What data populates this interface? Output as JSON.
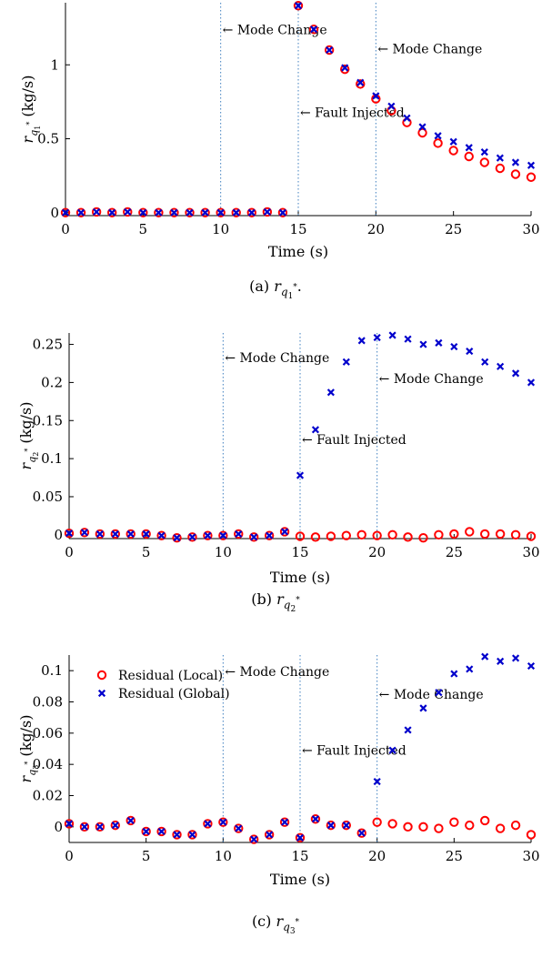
{
  "chart_data": [
    {
      "type": "scatter",
      "caption": "(a) r_{q_1^*}.",
      "xlabel": "Time (s)",
      "ylabel": "r_{q_1^*} (kg/s)",
      "xlim": [
        0,
        30
      ],
      "ylim": [
        -0.02,
        1.42
      ],
      "x_ticks": [
        0,
        5,
        10,
        15,
        20,
        25,
        30
      ],
      "y_ticks": [
        0,
        0.5,
        1
      ],
      "y_tick_labels": [
        "0",
        "0.5",
        "1"
      ],
      "grid": false,
      "vlines": [
        10,
        15,
        20
      ],
      "annotations": [
        {
          "text": "← Mode Change",
          "x": 10,
          "y": 1.24
        },
        {
          "text": "← Mode Change",
          "x": 20,
          "y": 1.11
        },
        {
          "text": "← Fault Injected",
          "x": 15,
          "y": 0.68
        }
      ],
      "series": [
        {
          "name": "Residual (Local)",
          "marker": "circle",
          "color": "#ff0000",
          "x": [
            0,
            1,
            2,
            3,
            4,
            5,
            6,
            7,
            8,
            9,
            10,
            11,
            12,
            13,
            14,
            15,
            16,
            17,
            18,
            19,
            20,
            21,
            22,
            23,
            24,
            25,
            26,
            27,
            28,
            29,
            30
          ],
          "y": [
            0,
            0,
            0.005,
            0,
            0.005,
            0,
            0,
            0,
            0,
            0,
            0,
            0,
            0,
            0.005,
            0,
            1.4,
            1.24,
            1.1,
            0.97,
            0.87,
            0.77,
            0.69,
            0.61,
            0.54,
            0.47,
            0.42,
            0.38,
            0.34,
            0.3,
            0.26,
            0.24
          ]
        },
        {
          "name": "Residual (Global)",
          "marker": "x",
          "color": "#0000cc",
          "x": [
            0,
            1,
            2,
            3,
            4,
            5,
            6,
            7,
            8,
            9,
            10,
            11,
            12,
            13,
            14,
            15,
            16,
            17,
            18,
            19,
            20,
            21,
            22,
            23,
            24,
            25,
            26,
            27,
            28,
            29,
            30
          ],
          "y": [
            0,
            0,
            0.005,
            0,
            0.005,
            0,
            0,
            0,
            0,
            0,
            0,
            0,
            0,
            0.005,
            0,
            1.4,
            1.24,
            1.1,
            0.98,
            0.88,
            0.79,
            0.72,
            0.64,
            0.58,
            0.52,
            0.48,
            0.44,
            0.41,
            0.37,
            0.34,
            0.32
          ]
        }
      ]
    },
    {
      "type": "scatter",
      "caption": "(b) r_{q_2^*}",
      "xlabel": "Time (s)",
      "ylabel": "r_{q_2^*} (kg/s)",
      "xlim": [
        0,
        30
      ],
      "ylim": [
        -0.005,
        0.265
      ],
      "x_ticks": [
        0,
        5,
        10,
        15,
        20,
        25,
        30
      ],
      "y_ticks": [
        0,
        0.05,
        0.1,
        0.15,
        0.2,
        0.25
      ],
      "y_tick_labels": [
        "0",
        "0.05",
        "0.1",
        "0.15",
        "0.2",
        "0.25"
      ],
      "grid": false,
      "vlines": [
        10,
        15,
        20
      ],
      "annotations": [
        {
          "text": "← Mode Change",
          "x": 10,
          "y": 0.233
        },
        {
          "text": "← Mode Change",
          "x": 20,
          "y": 0.205
        },
        {
          "text": "← Fault Injected",
          "x": 15,
          "y": 0.125
        }
      ],
      "series": [
        {
          "name": "Residual (Local)",
          "marker": "circle",
          "color": "#ff0000",
          "x": [
            0,
            1,
            2,
            3,
            4,
            5,
            6,
            7,
            8,
            9,
            10,
            11,
            12,
            13,
            14,
            15,
            16,
            17,
            18,
            19,
            20,
            21,
            22,
            23,
            24,
            25,
            26,
            27,
            28,
            29,
            30
          ],
          "y": [
            0.002,
            0.003,
            0.001,
            0.001,
            0.001,
            0.001,
            -0.001,
            -0.004,
            -0.003,
            -0.001,
            -0.001,
            0.001,
            -0.003,
            -0.001,
            0.004,
            -0.002,
            -0.003,
            -0.002,
            -0.001,
            0,
            -0.001,
            0,
            -0.003,
            -0.004,
            0,
            0.001,
            0.004,
            0.001,
            0.001,
            0,
            -0.002
          ]
        },
        {
          "name": "Residual (Global)",
          "marker": "x",
          "color": "#0000cc",
          "x": [
            0,
            1,
            2,
            3,
            4,
            5,
            6,
            7,
            8,
            9,
            10,
            11,
            12,
            13,
            14,
            15,
            16,
            17,
            18,
            19,
            20,
            21,
            22,
            23,
            24,
            25,
            26,
            27,
            28,
            29,
            30
          ],
          "y": [
            0.002,
            0.003,
            0.001,
            0.001,
            0.001,
            0.001,
            -0.001,
            -0.004,
            -0.003,
            -0.001,
            -0.001,
            0.001,
            -0.003,
            -0.001,
            0.004,
            0.078,
            0.138,
            0.187,
            0.227,
            0.255,
            0.259,
            0.262,
            0.257,
            0.25,
            0.252,
            0.247,
            0.241,
            0.227,
            0.221,
            0.212,
            0.2
          ]
        }
      ]
    },
    {
      "type": "scatter",
      "caption": "(c) r_{q_3^*}",
      "xlabel": "Time (s)",
      "ylabel": "r_{q_3^*} (kg/s)",
      "xlim": [
        0,
        30
      ],
      "ylim": [
        -0.01,
        0.11
      ],
      "x_ticks": [
        0,
        5,
        10,
        15,
        20,
        25,
        30
      ],
      "y_ticks": [
        0,
        0.02,
        0.04,
        0.06,
        0.08,
        0.1
      ],
      "y_tick_labels": [
        "0",
        "0.02",
        "0.04",
        "0.06",
        "0.08",
        "0.1"
      ],
      "grid": false,
      "vlines": [
        10,
        15,
        20
      ],
      "legend": {
        "placement": "top-left",
        "entries": [
          "Residual (Local)",
          "Residual (Global)"
        ]
      },
      "annotations": [
        {
          "text": "← Mode Change",
          "x": 10,
          "y": 0.0995
        },
        {
          "text": "← Mode Change",
          "x": 20,
          "y": 0.085
        },
        {
          "text": "← Fault Injected",
          "x": 15,
          "y": 0.049
        }
      ],
      "series": [
        {
          "name": "Residual (Local)",
          "marker": "circle",
          "color": "#ff0000",
          "x": [
            0,
            1,
            2,
            3,
            4,
            5,
            6,
            7,
            8,
            9,
            10,
            11,
            12,
            13,
            14,
            15,
            16,
            17,
            18,
            19,
            20,
            21,
            22,
            23,
            24,
            25,
            26,
            27,
            28,
            29,
            30
          ],
          "y": [
            0.002,
            0,
            0,
            0.001,
            0.004,
            -0.003,
            -0.003,
            -0.005,
            -0.005,
            0.002,
            0.003,
            -0.001,
            -0.008,
            -0.005,
            0.003,
            -0.007,
            0.005,
            0.001,
            0.001,
            -0.004,
            0.003,
            0.002,
            0,
            0,
            -0.001,
            0.003,
            0.001,
            0.004,
            -0.001,
            0.001,
            -0.005
          ]
        },
        {
          "name": "Residual (Global)",
          "marker": "x",
          "color": "#0000cc",
          "x": [
            0,
            1,
            2,
            3,
            4,
            5,
            6,
            7,
            8,
            9,
            10,
            11,
            12,
            13,
            14,
            15,
            16,
            17,
            18,
            19,
            20,
            21,
            22,
            23,
            24,
            25,
            26,
            27,
            28,
            29,
            30
          ],
          "y": [
            0.002,
            0,
            0,
            0.001,
            0.004,
            -0.003,
            -0.003,
            -0.005,
            -0.005,
            0.002,
            0.003,
            -0.001,
            -0.008,
            -0.005,
            0.003,
            -0.007,
            0.005,
            0.001,
            0.001,
            -0.004,
            0.029,
            0.049,
            0.062,
            0.076,
            0.086,
            0.098,
            0.101,
            0.109,
            0.106,
            0.108,
            0.103
          ]
        }
      ]
    }
  ]
}
